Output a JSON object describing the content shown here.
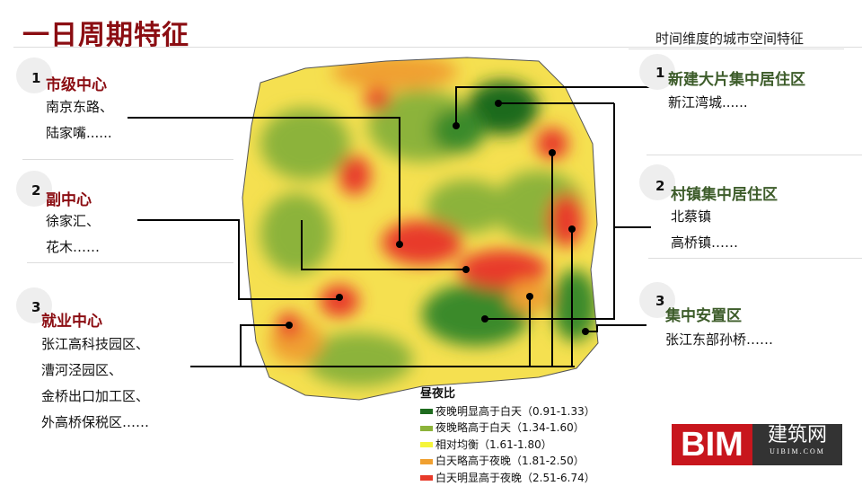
{
  "header": {
    "title": "一日周期特征",
    "subtitle": "时间维度的城市空间特征"
  },
  "left_items": [
    {
      "num": "1",
      "heading": "市级中心",
      "lines": [
        "南京东路、",
        "陆家嘴......"
      ]
    },
    {
      "num": "2",
      "heading": "副中心",
      "lines": [
        "徐家汇、",
        "花木……"
      ]
    },
    {
      "num": "3",
      "heading": "就业中心",
      "lines": [
        "张江高科技园区、",
        "漕河泾园区、",
        "金桥出口加工区、",
        "外高桥保税区……"
      ]
    }
  ],
  "right_items": [
    {
      "num": "1",
      "heading": "新建大片集中居住区",
      "lines": [
        "新江湾城......"
      ]
    },
    {
      "num": "2",
      "heading": "村镇集中居住区",
      "lines": [
        "北蔡镇",
        "高桥镇……"
      ]
    },
    {
      "num": "3",
      "heading": "集中安置区",
      "lines": [
        "张江东部孙桥……"
      ]
    }
  ],
  "legend": {
    "title": "昼夜比",
    "items": [
      {
        "label": "夜晚明显高于白天（0.91-1.33）",
        "color": "#1e6b1e"
      },
      {
        "label": "夜晚略高于白天（1.34-1.60）",
        "color": "#8cb33a"
      },
      {
        "label": "相对均衡（1.61-1.80）",
        "color": "#f5f53a"
      },
      {
        "label": "白天略高于夜晚（1.81-2.50）",
        "color": "#f0a030"
      },
      {
        "label": "白天明显高于夜晚（2.51-6.74）",
        "color": "#e83a2a"
      }
    ]
  },
  "logo": {
    "main": "BIM",
    "cn": "建筑网",
    "en": "UIBIM.COM"
  },
  "colors": {
    "accent_red": "#8b0d12",
    "accent_green": "#3d5c2a"
  }
}
